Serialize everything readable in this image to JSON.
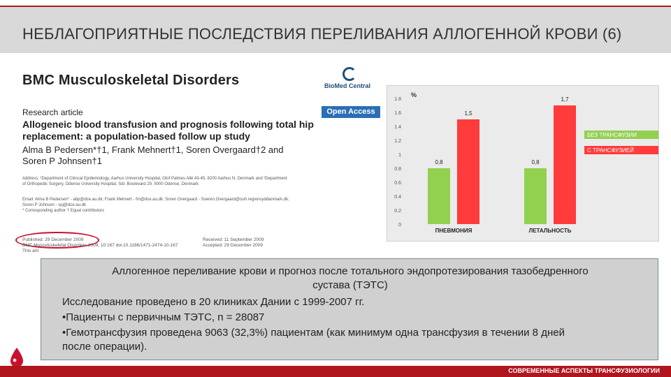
{
  "header": {
    "title": "НЕБЛАГОПРИЯТНЫЕ ПОСЛЕДСТВИЯ ПЕРЕЛИВАНИЯ АЛЛОГЕННОЙ КРОВИ (6)"
  },
  "paper": {
    "journal": "BMC Musculoskeletal Disorders",
    "publisher_logo_text": "BioMed Central",
    "research_label": "Research article",
    "open_access": "Open Access",
    "title_line1": "Allogeneic blood transfusion and prognosis following total hip",
    "title_line2": "replacement: a population-based follow up study",
    "authors_line1": "Alma B Pedersen*†1, Frank Mehnert†1, Soren Overgaard†2 and",
    "authors_line2": "Soren P Johnsen†1",
    "address_line1": "Address: ¹Department of Clinical Epidemiology, Aarhus University Hospital, Olof Palmes Allé 43-45, 8200 Aarhus N, Denmark and ²Department",
    "address_line2": "of Orthopedic Surgery, Odense University Hospital, Sdr. Boulevard 29, 5000 Odense, Denmark",
    "email_line1": "Email: Alma B Pedersen* - abp@dce.au.dk; Frank Mehnert - fm@dce.au.dk; Soren Overgaard - Soeren.Overgaard@ouh.regionsyddanmark.dk;",
    "email_line2": "Soren P Johnsen - spj@dce.au.dk",
    "email_line3": "* Corresponding author    † Equal contributors",
    "published": "Published: 29 December 2009",
    "citation": "BMC Musculoskeletal Disorders 2009, 10:167    doi:10.1186/1471-2474-10-167",
    "received": "Received: 11 September 2009",
    "accepted": "Accepted: 29 December 2009",
    "cutoff_text": "This arti"
  },
  "chart_data": {
    "type": "bar",
    "categories": [
      "ПНЕВМОНИЯ",
      "ЛЕТАЛЬНОСТЬ"
    ],
    "series": [
      {
        "name": "БЕЗ ТРАНСФУЗИИ",
        "color": "#92d050",
        "values": [
          0.8,
          0.8
        ],
        "labels": [
          "0,8",
          "0,8"
        ]
      },
      {
        "name": "С ТРАНСФУЗИЕЙ",
        "color": "#ff3b3b",
        "values": [
          1.5,
          1.7
        ],
        "labels": [
          "1,5",
          "1,7"
        ]
      }
    ],
    "ylabel": "%",
    "ylim": [
      0,
      1.8
    ],
    "yticks": [
      0,
      0.2,
      0.4,
      0.6,
      0.8,
      1,
      1.2,
      1.4,
      1.6,
      1.8
    ],
    "ytick_labels": [
      "0",
      "0.2",
      "0.4",
      "0.6",
      "0.8",
      "1",
      "1.2",
      "1.4",
      "1.6",
      "1.8"
    ],
    "legend_position": "right",
    "grid": false
  },
  "panel": {
    "title_line1": "Аллогенное переливание крови и прогноз после тотального эндопротезирования тазобедренного",
    "title_line2": "сустава (ТЭТС)",
    "line1": "Исследование проведено в 20 клиниках Дании с 1999-2007 гг.",
    "line2": "•Пациенты с первичным ТЭТС, n = 28087",
    "line3": "•Гемотрансфузия проведена 9063 (32,3%) пациентам (как минимум одна трансфузия в течении 8 дней",
    "line4": "после операции)."
  },
  "footer": {
    "text": "СОВРЕМЕННЫЕ АСПЕКТЫ ТРАНСФУЗИОЛОГИИ"
  }
}
